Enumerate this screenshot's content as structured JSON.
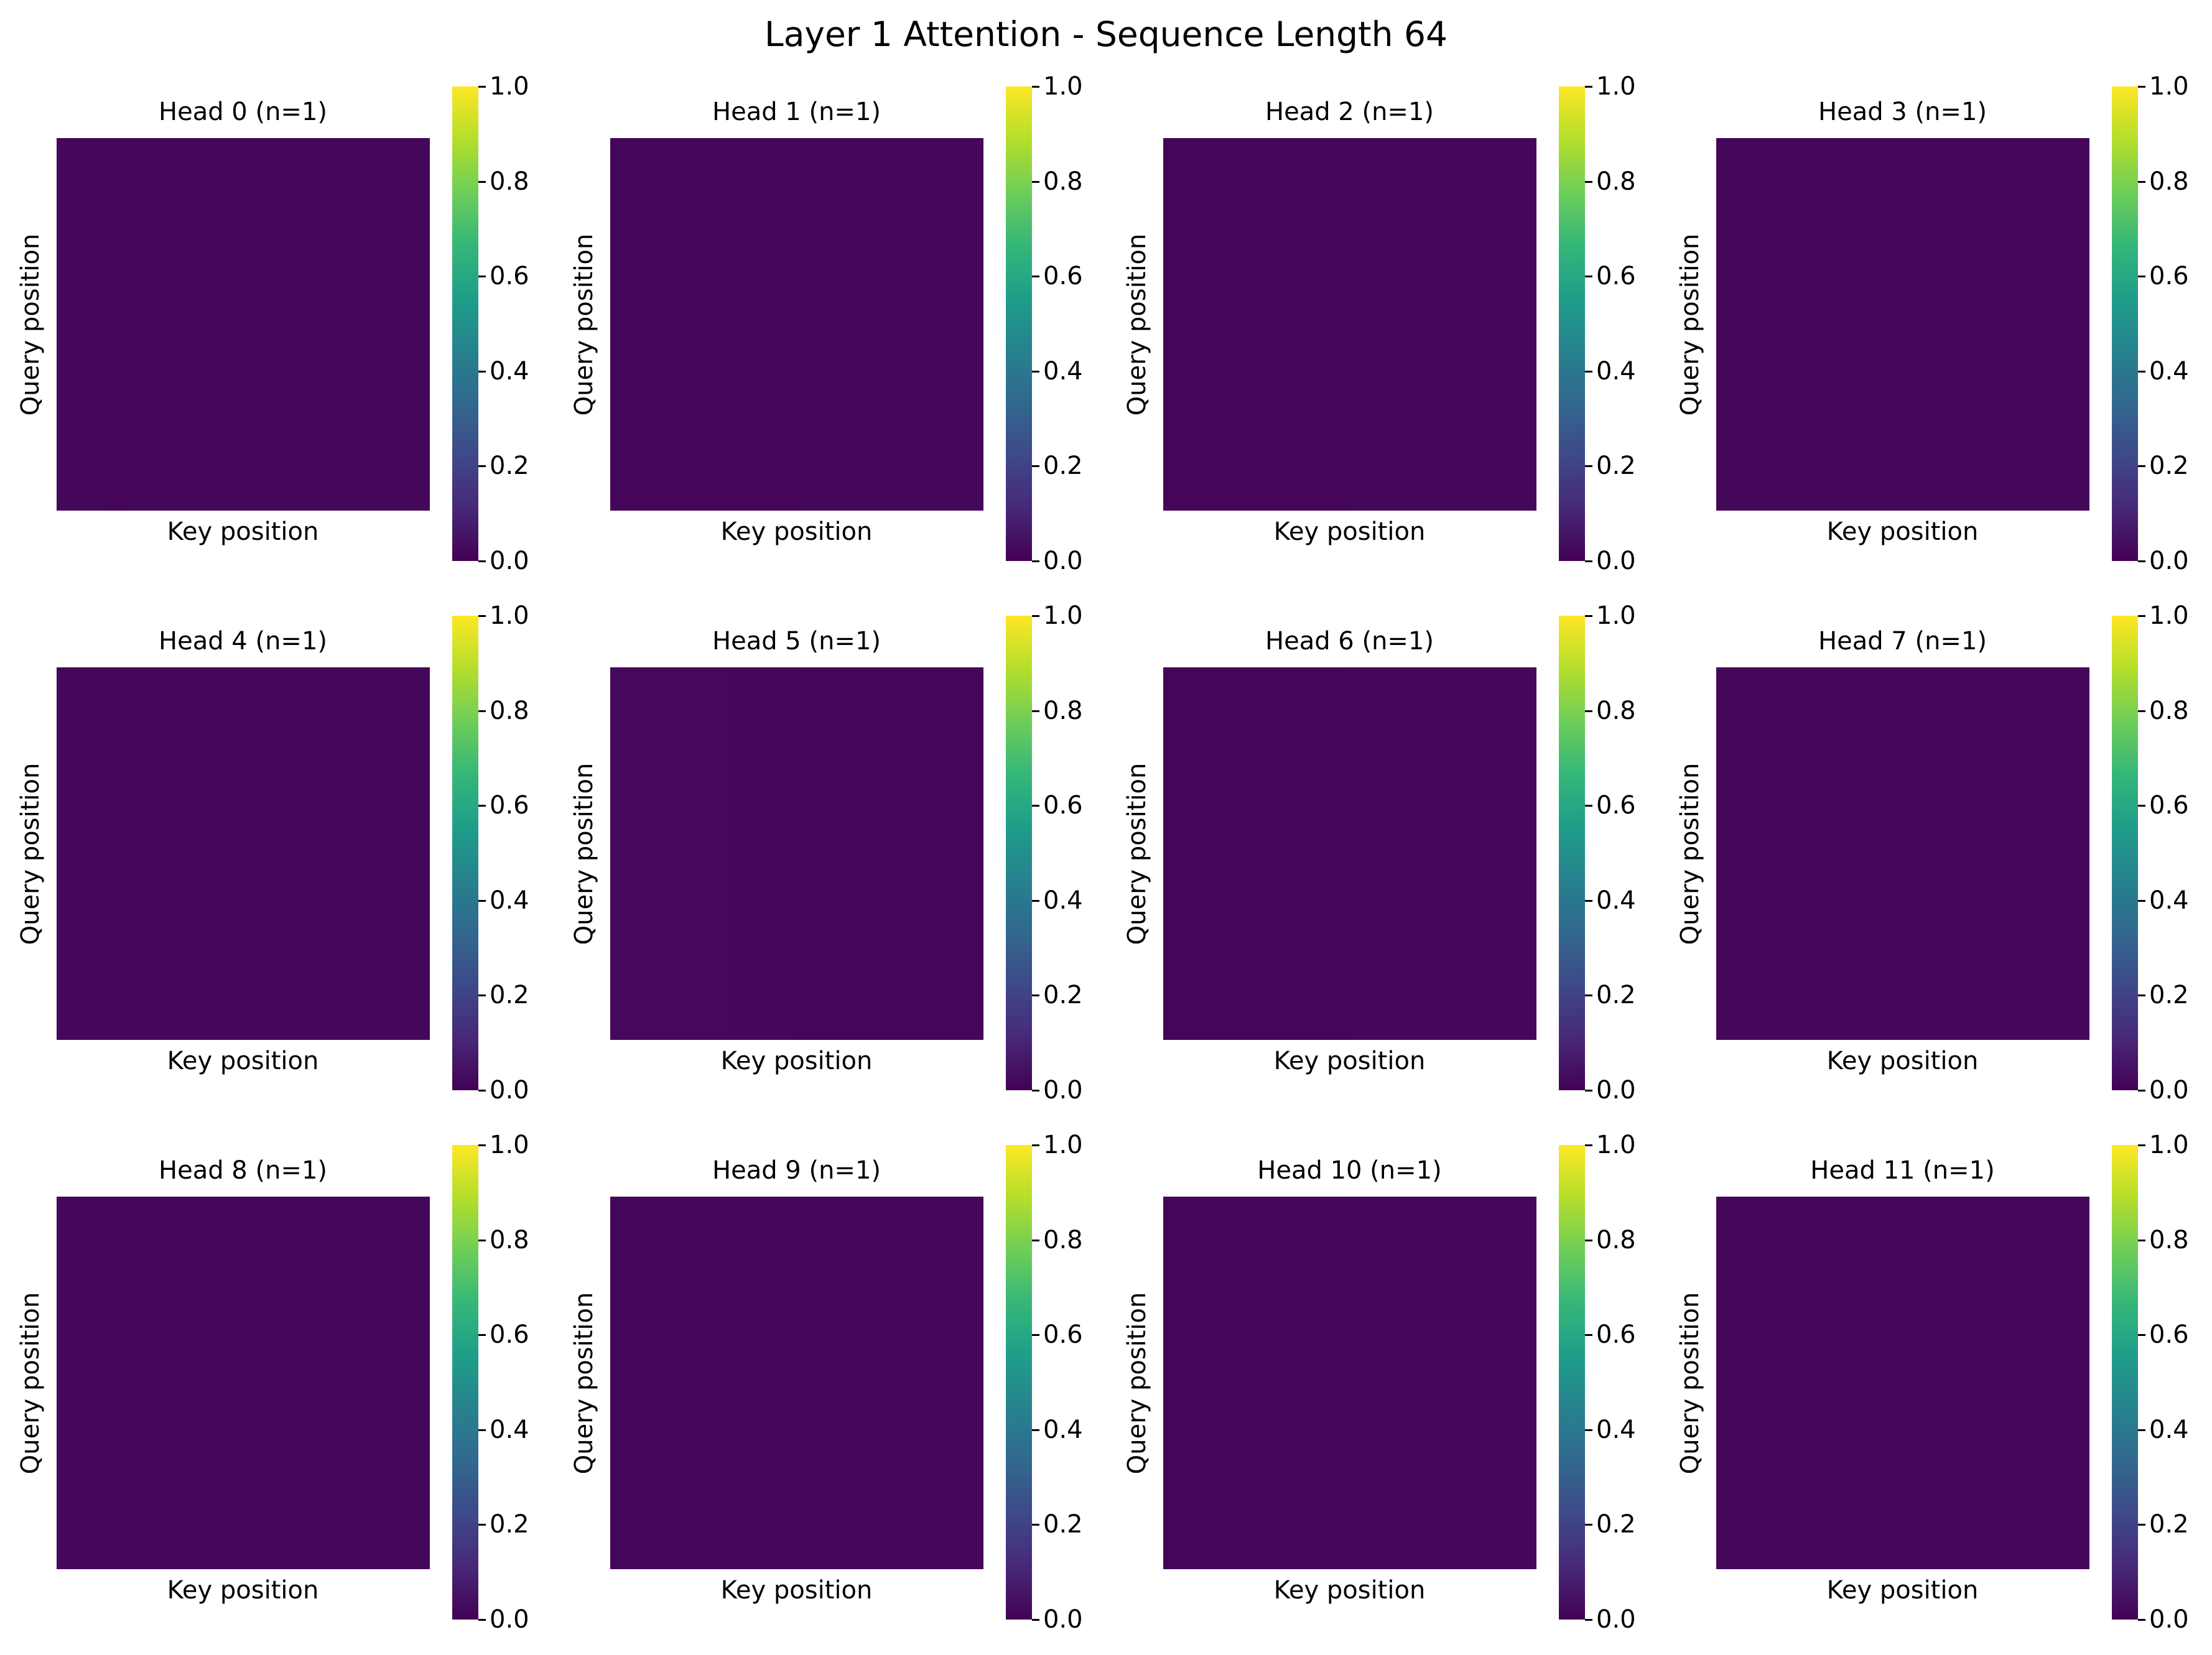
{
  "suptitle": "Layer 1 Attention - Sequence Length 64",
  "colormap": {
    "name": "viridis",
    "stops": [
      "#440154",
      "#482878",
      "#3e4989",
      "#31688e",
      "#26828e",
      "#1f9e89",
      "#35b779",
      "#6ece58",
      "#b5de2b",
      "#fde725"
    ]
  },
  "chart_data": [
    {
      "type": "heatmap",
      "title": "Head 0 (n=1)",
      "xlabel": "Key position",
      "ylabel": "Query position",
      "vlim": [
        0,
        1
      ],
      "colorbar_ticks": [
        "0.0",
        "0.2",
        "0.4",
        "0.6",
        "0.8",
        "1.0"
      ],
      "approx_key_profile": [
        0.016,
        0.016,
        0.015,
        0.016,
        0.016,
        0.016,
        0.016,
        0.016,
        0.016,
        0.016,
        0.016,
        0.016,
        0.016,
        0.016,
        0.016,
        0.016
      ]
    },
    {
      "type": "heatmap",
      "title": "Head 1 (n=1)",
      "xlabel": "Key position",
      "ylabel": "Query position",
      "vlim": [
        0,
        1
      ],
      "colorbar_ticks": [
        "0.0",
        "0.2",
        "0.4",
        "0.6",
        "0.8",
        "1.0"
      ],
      "approx_key_profile": [
        0.015,
        0.015,
        0.015,
        0.015,
        0.015,
        0.015,
        0.015,
        0.015,
        0.017,
        0.017,
        0.017,
        0.017,
        0.017,
        0.017,
        0.017,
        0.017
      ]
    },
    {
      "type": "heatmap",
      "title": "Head 2 (n=1)",
      "xlabel": "Key position",
      "ylabel": "Query position",
      "vlim": [
        0,
        1
      ],
      "colorbar_ticks": [
        "0.0",
        "0.2",
        "0.4",
        "0.6",
        "0.8",
        "1.0"
      ],
      "approx_key_profile": [
        0.015,
        0.015,
        0.015,
        0.015,
        0.015,
        0.015,
        0.015,
        0.015,
        0.017,
        0.017,
        0.017,
        0.017,
        0.017,
        0.017,
        0.017,
        0.017
      ]
    },
    {
      "type": "heatmap",
      "title": "Head 3 (n=1)",
      "xlabel": "Key position",
      "ylabel": "Query position",
      "vlim": [
        0,
        1
      ],
      "colorbar_ticks": [
        "0.0",
        "0.2",
        "0.4",
        "0.6",
        "0.8",
        "1.0"
      ],
      "approx_key_profile": [
        0.016,
        0.016,
        0.016,
        0.016,
        0.016,
        0.016,
        0.016,
        0.016,
        0.016,
        0.016,
        0.016,
        0.016,
        0.016,
        0.016,
        0.016,
        0.016
      ]
    },
    {
      "type": "heatmap",
      "title": "Head 4 (n=1)",
      "xlabel": "Key position",
      "ylabel": "Query position",
      "vlim": [
        0,
        1
      ],
      "colorbar_ticks": [
        "0.0",
        "0.2",
        "0.4",
        "0.6",
        "0.8",
        "1.0"
      ],
      "approx_key_profile": [
        0.016,
        0.016,
        0.016,
        0.016,
        0.016,
        0.016,
        0.016,
        0.016,
        0.016,
        0.016,
        0.016,
        0.016,
        0.016,
        0.016,
        0.016,
        0.016
      ]
    },
    {
      "type": "heatmap",
      "title": "Head 5 (n=1)",
      "xlabel": "Key position",
      "ylabel": "Query position",
      "vlim": [
        0,
        1
      ],
      "colorbar_ticks": [
        "0.0",
        "0.2",
        "0.4",
        "0.6",
        "0.8",
        "1.0"
      ],
      "approx_key_profile": [
        0.019,
        0.02,
        0.019,
        0.02,
        0.019,
        0.018,
        0.018,
        0.017,
        0.014,
        0.014,
        0.013,
        0.013,
        0.013,
        0.013,
        0.013,
        0.013
      ]
    },
    {
      "type": "heatmap",
      "title": "Head 6 (n=1)",
      "xlabel": "Key position",
      "ylabel": "Query position",
      "vlim": [
        0,
        1
      ],
      "colorbar_ticks": [
        "0.0",
        "0.2",
        "0.4",
        "0.6",
        "0.8",
        "1.0"
      ],
      "approx_key_profile": [
        0.015,
        0.015,
        0.015,
        0.015,
        0.015,
        0.015,
        0.015,
        0.015,
        0.018,
        0.018,
        0.018,
        0.018,
        0.018,
        0.018,
        0.018,
        0.018
      ]
    },
    {
      "type": "heatmap",
      "title": "Head 7 (n=1)",
      "xlabel": "Key position",
      "ylabel": "Query position",
      "vlim": [
        0,
        1
      ],
      "colorbar_ticks": [
        "0.0",
        "0.2",
        "0.4",
        "0.6",
        "0.8",
        "1.0"
      ],
      "approx_key_profile": [
        0.016,
        0.016,
        0.016,
        0.016,
        0.016,
        0.016,
        0.016,
        0.016,
        0.016,
        0.016,
        0.016,
        0.016,
        0.016,
        0.016,
        0.016,
        0.016
      ]
    },
    {
      "type": "heatmap",
      "title": "Head 8 (n=1)",
      "xlabel": "Key position",
      "ylabel": "Query position",
      "vlim": [
        0,
        1
      ],
      "colorbar_ticks": [
        "0.0",
        "0.2",
        "0.4",
        "0.6",
        "0.8",
        "1.0"
      ],
      "approx_key_profile": [
        0.016,
        0.016,
        0.016,
        0.016,
        0.016,
        0.016,
        0.016,
        0.016,
        0.017,
        0.017,
        0.017,
        0.017,
        0.016,
        0.016,
        0.016,
        0.016
      ]
    },
    {
      "type": "heatmap",
      "title": "Head 9 (n=1)",
      "xlabel": "Key position",
      "ylabel": "Query position",
      "vlim": [
        0,
        1
      ],
      "colorbar_ticks": [
        "0.0",
        "0.2",
        "0.4",
        "0.6",
        "0.8",
        "1.0"
      ],
      "approx_key_profile": [
        0.015,
        0.015,
        0.015,
        0.015,
        0.015,
        0.015,
        0.015,
        0.015,
        0.017,
        0.017,
        0.017,
        0.017,
        0.017,
        0.017,
        0.017,
        0.017
      ]
    },
    {
      "type": "heatmap",
      "title": "Head 10 (n=1)",
      "xlabel": "Key position",
      "ylabel": "Query position",
      "vlim": [
        0,
        1
      ],
      "colorbar_ticks": [
        "0.0",
        "0.2",
        "0.4",
        "0.6",
        "0.8",
        "1.0"
      ],
      "approx_key_profile": [
        0.015,
        0.015,
        0.015,
        0.015,
        0.015,
        0.015,
        0.015,
        0.015,
        0.017,
        0.017,
        0.017,
        0.017,
        0.017,
        0.017,
        0.017,
        0.017
      ]
    },
    {
      "type": "heatmap",
      "title": "Head 11 (n=1)",
      "xlabel": "Key position",
      "ylabel": "Query position",
      "vlim": [
        0,
        1
      ],
      "colorbar_ticks": [
        "0.0",
        "0.2",
        "0.4",
        "0.6",
        "0.8",
        "1.0"
      ],
      "approx_key_profile": [
        0.016,
        0.016,
        0.016,
        0.016,
        0.016,
        0.016,
        0.016,
        0.016,
        0.016,
        0.016,
        0.016,
        0.016,
        0.016,
        0.016,
        0.016,
        0.016
      ]
    }
  ]
}
